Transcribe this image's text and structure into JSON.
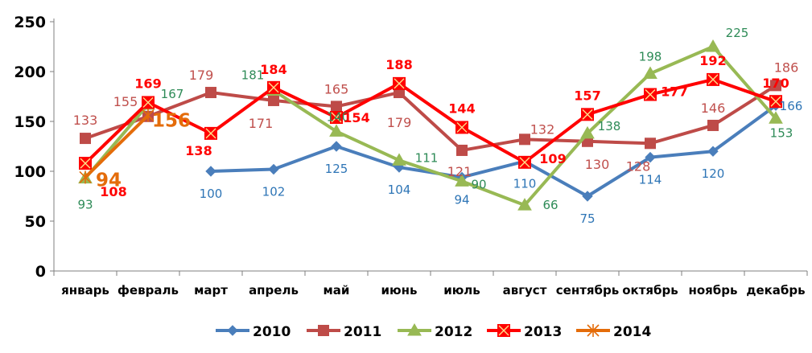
{
  "chart_data": {
    "type": "line",
    "title": "",
    "xlabel": "",
    "ylabel": "",
    "ylim": [
      0,
      250
    ],
    "yticks": [
      0,
      50,
      100,
      150,
      200,
      250
    ],
    "grid": false,
    "legend_position": "bottom",
    "categories": [
      "январь",
      "февраль",
      "март",
      "апрель",
      "май",
      "июнь",
      "июль",
      "август",
      "сентябрь",
      "октябрь",
      "ноябрь",
      "декабрь"
    ],
    "series": [
      {
        "name": "2010",
        "color": "#4a7ebb",
        "label_color": "#2e75b6",
        "label_bold": false,
        "marker": "diamond",
        "values": [
          null,
          null,
          100,
          102,
          125,
          104,
          94,
          110,
          75,
          114,
          120,
          166
        ]
      },
      {
        "name": "2011",
        "color": "#be4b48",
        "label_color": "#c0504d",
        "label_bold": false,
        "marker": "square",
        "values": [
          133,
          155,
          179,
          171,
          165,
          179,
          121,
          132,
          130,
          128,
          146,
          186
        ]
      },
      {
        "name": "2012",
        "color": "#98b954",
        "label_color": "#2e8b57",
        "label_bold": false,
        "marker": "triangle",
        "values": [
          93,
          167,
          null,
          181,
          140,
          111,
          90,
          66,
          138,
          198,
          225,
          153
        ]
      },
      {
        "name": "2013",
        "color": "#ff0000",
        "label_color": "#ff0000",
        "label_bold": true,
        "marker": "square-x",
        "values": [
          108,
          169,
          138,
          184,
          154,
          188,
          144,
          109,
          157,
          177,
          192,
          170
        ]
      },
      {
        "name": "2014",
        "color": "#e46c0a",
        "label_color": "#e46c0a",
        "label_bold": true,
        "marker": "star",
        "values": [
          94,
          156,
          null,
          null,
          null,
          null,
          null,
          null,
          null,
          null,
          null,
          null
        ]
      }
    ]
  }
}
